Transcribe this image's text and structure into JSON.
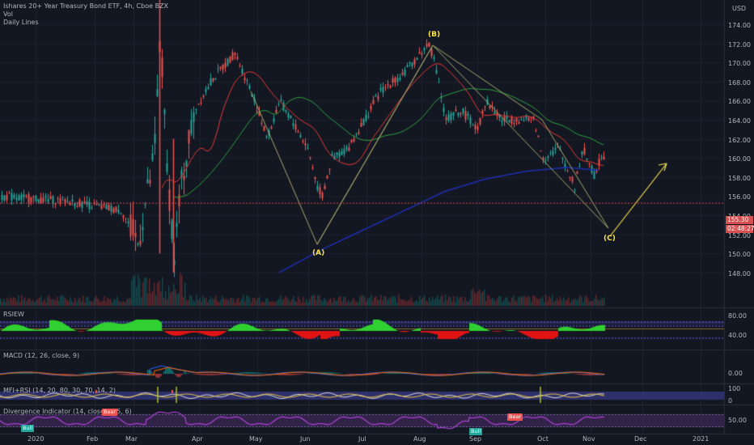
{
  "header": {
    "symbol_line": "Ishares 20+ Year Treasury Bond ETF, 4h, Cboe BZX",
    "line2": "Vol",
    "line3": "Daily Lines"
  },
  "currency": "USD",
  "price_axis": [
    "174.00",
    "172.00",
    "170.00",
    "168.00",
    "166.00",
    "164.00",
    "162.00",
    "160.00",
    "158.00",
    "156.00",
    "154.00",
    "152.00",
    "150.00",
    "148.00"
  ],
  "last_price": "155.30",
  "countdown": "02:48:27",
  "time_axis": [
    "2020",
    "Feb",
    "Mar",
    "Apr",
    "May",
    "Jun",
    "Jul",
    "Aug",
    "Sep",
    "Oct",
    "Nov",
    "Dec",
    "2021"
  ],
  "wave_labels": {
    "a": "(A)",
    "b": "(B)",
    "c": "(C)"
  },
  "indicators": {
    "rsiew": {
      "title": "RSIEW",
      "ticks": [
        "80.00",
        "40.00"
      ]
    },
    "macd": {
      "title": "MACD (12, 26, close, 9)",
      "ticks": [
        "0.00"
      ]
    },
    "mfi": {
      "title": "MFI+RSI (14, 20, 80, 30, 70, 14, 2)",
      "ticks": [
        "100",
        "0"
      ]
    },
    "div": {
      "title": "Divergence Indicator (14, close, 5, 5, 6)",
      "ticks": [
        "50.00"
      ]
    }
  },
  "signals": {
    "bull": "Bull",
    "bear": "Bear"
  },
  "colors": {
    "background": "#131722",
    "up": "#26a69a",
    "down": "#ef5350",
    "ma_fast": "#e53935",
    "ma_mid": "#2e9e3e",
    "ma_slow": "#1f2fb3",
    "wave": "#f5e24b",
    "zigzag": "#a8a86a",
    "rsi_pos": "#2fd02f",
    "rsi_neg": "#e01414"
  }
}
